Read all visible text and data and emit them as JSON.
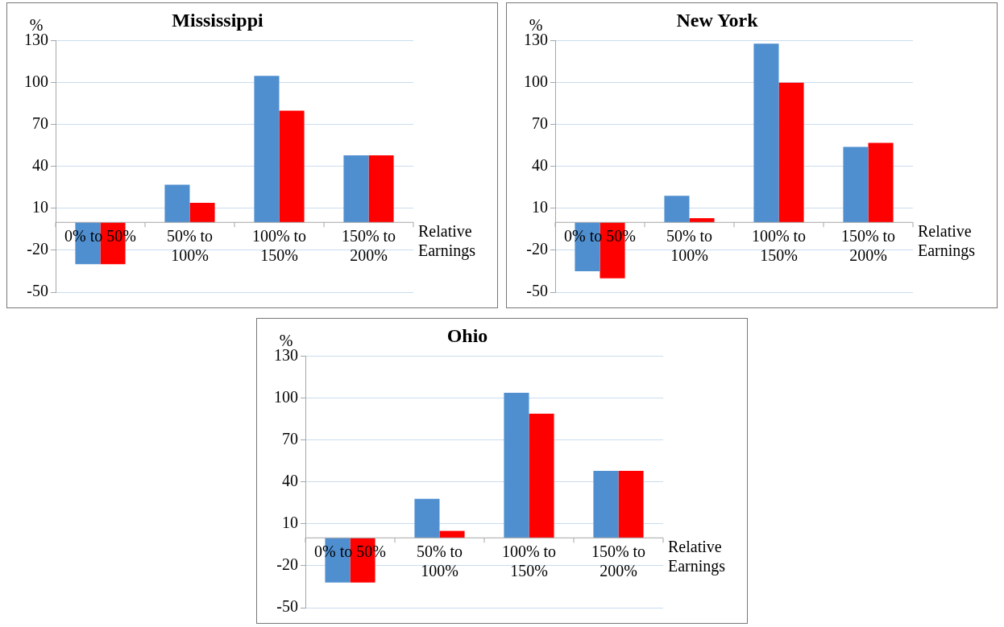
{
  "chart_data": [
    {
      "type": "bar",
      "title": "Mississippi",
      "ylabel": "%",
      "xlabel": "Relative Earnings",
      "categories": [
        "0% to 50%",
        "50% to 100%",
        "100% to 150%",
        "150% to 200%"
      ],
      "series": [
        {
          "color": "#4f8fd0",
          "values": [
            -30,
            27,
            105,
            48
          ]
        },
        {
          "color": "#ff0000",
          "values": [
            -30,
            14,
            80,
            48
          ]
        }
      ],
      "ylim": [
        -50,
        130
      ],
      "yticks": [
        -50,
        -20,
        10,
        40,
        70,
        100,
        130
      ],
      "grid": "y",
      "legend": false
    },
    {
      "type": "bar",
      "title": "New York",
      "ylabel": "%",
      "xlabel": "Relative Earnings",
      "categories": [
        "0% to 50%",
        "50% to 100%",
        "100% to 150%",
        "150% to 200%"
      ],
      "series": [
        {
          "color": "#4f8fd0",
          "values": [
            -35,
            19,
            128,
            54
          ]
        },
        {
          "color": "#ff0000",
          "values": [
            -40,
            3,
            100,
            57
          ]
        }
      ],
      "ylim": [
        -50,
        130
      ],
      "yticks": [
        -50,
        -20,
        10,
        40,
        70,
        100,
        130
      ],
      "grid": "y",
      "legend": false
    },
    {
      "type": "bar",
      "title": "Ohio",
      "ylabel": "%",
      "xlabel": "Relative Earnings",
      "categories": [
        "0% to 50%",
        "50% to 100%",
        "100% to 150%",
        "150% to 200%"
      ],
      "series": [
        {
          "color": "#4f8fd0",
          "values": [
            -32,
            28,
            104,
            48
          ]
        },
        {
          "color": "#ff0000",
          "values": [
            -32,
            5,
            89,
            48
          ]
        }
      ],
      "ylim": [
        -50,
        130
      ],
      "yticks": [
        -50,
        -20,
        10,
        40,
        70,
        100,
        130
      ],
      "grid": "y",
      "legend": false
    }
  ]
}
